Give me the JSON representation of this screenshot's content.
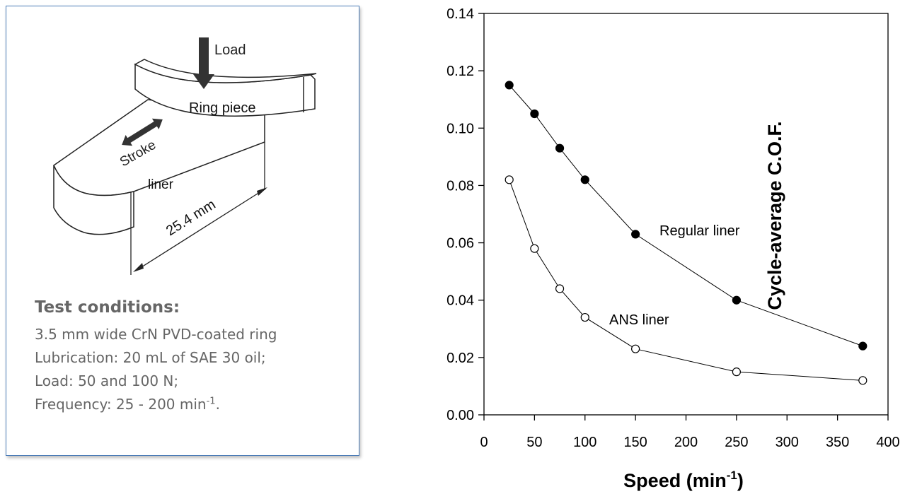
{
  "figure": {
    "labels": {
      "load": "Load",
      "ring_piece": "Ring piece",
      "stroke": "Stroke",
      "liner": "liner",
      "dimension": "25.4 mm"
    },
    "conditions": {
      "title": "Test conditions:",
      "lines": [
        "3.5 mm wide CrN PVD-coated ring",
        "Lubrication: 20 mL of SAE 30 oil;",
        "Load: 50 and 100 N;"
      ],
      "frequency_prefix": "Frequency:  25 - 200 min",
      "frequency_sup": "-1",
      "frequency_suffix": "."
    }
  },
  "chart_data": {
    "type": "line",
    "ylabel": "Cycle-average C.O.F.",
    "xlabel_main": "Speed (min",
    "xlabel_sup": "-1",
    "xlabel_end": ")",
    "xlim": [
      0,
      400
    ],
    "ylim": [
      0,
      0.14
    ],
    "xticks": [
      "0",
      "50",
      "100",
      "150",
      "200",
      "250",
      "300",
      "350",
      "400"
    ],
    "yticks": [
      "0.00",
      "0.02",
      "0.04",
      "0.06",
      "0.08",
      "0.10",
      "0.12",
      "0.14"
    ],
    "series": [
      {
        "name": "Regular liner",
        "marker": "filled-circle",
        "color": "#000000",
        "x": [
          25,
          50,
          75,
          100,
          150,
          250,
          375
        ],
        "values": [
          0.115,
          0.105,
          0.093,
          0.082,
          0.063,
          0.04,
          0.024
        ]
      },
      {
        "name": "ANS liner",
        "marker": "open-circle",
        "color": "#000000",
        "x": [
          25,
          50,
          75,
          100,
          150,
          250,
          375
        ],
        "values": [
          0.082,
          0.058,
          0.044,
          0.034,
          0.023,
          0.015,
          0.012
        ]
      }
    ]
  }
}
